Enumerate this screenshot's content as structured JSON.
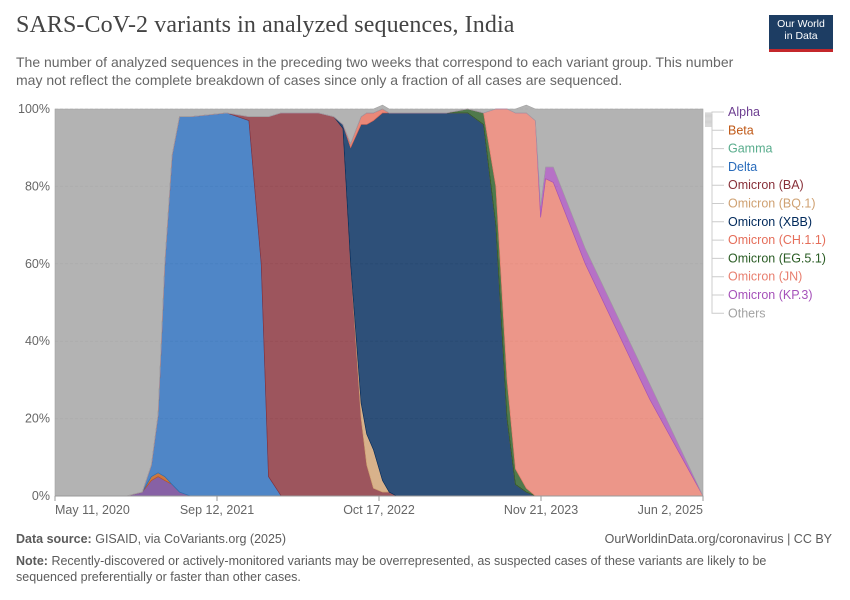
{
  "header": {
    "title": "SARS-CoV-2 variants in analyzed sequences, India",
    "subtitle": "The number of analyzed sequences in the preceding two weeks that correspond to each variant group. This number may not reflect the complete breakdown of cases since only a fraction of all cases are sequenced.",
    "logo_line1": "Our World",
    "logo_line2": "in Data"
  },
  "footer": {
    "source_label": "Data source:",
    "source_text": "GISAID, via CoVariants.org (2025)",
    "url_text": "OurWorldinData.org/coronavirus | CC BY",
    "note_label": "Note:",
    "note_text": "Recently-discovered or actively-monitored variants may be overrepresented, as suspected cases of these variants are likely to be sequenced preferentially or faster than other cases."
  },
  "chart_data": {
    "type": "area",
    "stacked": true,
    "y_unit": "percent",
    "ylim": [
      0,
      100
    ],
    "y_ticks": [
      "0%",
      "20%",
      "40%",
      "60%",
      "80%",
      "100%"
    ],
    "x_ticks": [
      "May 11, 2020",
      "Sep 12, 2021",
      "Oct 17, 2022",
      "Nov 21, 2023",
      "Jun 2, 2025"
    ],
    "grid": "horizontal dashed",
    "legend_position": "right",
    "x": [
      "2020-05-11",
      "2020-08-01",
      "2020-10-15",
      "2020-12-01",
      "2021-01-15",
      "2021-02-10",
      "2021-03-01",
      "2021-03-20",
      "2021-04-10",
      "2021-05-01",
      "2021-06-01",
      "2021-09-12",
      "2021-11-15",
      "2021-12-20",
      "2022-01-10",
      "2022-02-15",
      "2022-06-01",
      "2022-07-15",
      "2022-08-10",
      "2022-09-01",
      "2022-10-01",
      "2022-10-17",
      "2022-11-05",
      "2022-12-01",
      "2022-12-20",
      "2023-01-10",
      "2023-02-20",
      "2023-04-01",
      "2023-06-01",
      "2023-08-01",
      "2023-09-15",
      "2023-10-20",
      "2023-11-21",
      "2023-12-15",
      "2024-01-15",
      "2024-02-10",
      "2024-02-25",
      "2024-03-10",
      "2024-04-01",
      "2024-07-01",
      "2025-01-01",
      "2025-06-02"
    ],
    "series": [
      {
        "name": "Alpha",
        "color": "#6d3e91",
        "values": [
          0,
          0,
          0,
          0,
          1,
          4,
          5,
          4,
          3,
          1,
          0,
          0,
          0,
          0,
          0,
          0,
          0,
          0,
          0,
          0,
          0,
          0,
          0,
          0,
          0,
          0,
          0,
          0,
          0,
          0,
          0,
          0,
          0,
          0,
          0,
          0,
          0,
          0,
          0,
          0,
          0,
          0
        ]
      },
      {
        "name": "Beta",
        "color": "#c05917",
        "values": [
          0,
          0,
          0,
          0,
          0,
          1,
          1,
          1,
          0,
          0,
          0,
          0,
          0,
          0,
          0,
          0,
          0,
          0,
          0,
          0,
          0,
          0,
          0,
          0,
          0,
          0,
          0,
          0,
          0,
          0,
          0,
          0,
          0,
          0,
          0,
          0,
          0,
          0,
          0,
          0,
          0,
          0
        ]
      },
      {
        "name": "Gamma",
        "color": "#58ac8c",
        "values": [
          0,
          0,
          0,
          0,
          0,
          0,
          0,
          0,
          0,
          0,
          0,
          0,
          0,
          0,
          0,
          0,
          0,
          0,
          0,
          0,
          0,
          0,
          0,
          0,
          0,
          0,
          0,
          0,
          0,
          0,
          0,
          0,
          0,
          0,
          0,
          0,
          0,
          0,
          0,
          0,
          0,
          0
        ]
      },
      {
        "name": "Delta",
        "color": "#286bbb",
        "values": [
          0,
          0,
          0,
          0,
          0,
          3,
          15,
          55,
          85,
          97,
          98,
          99,
          97,
          60,
          5,
          0,
          0,
          0,
          0,
          0,
          0,
          0,
          0,
          0,
          0,
          0,
          0,
          0,
          0,
          0,
          0,
          0,
          0,
          0,
          0,
          0,
          0,
          0,
          0,
          0,
          0,
          0
        ]
      },
      {
        "name": "Omicron (BA)",
        "color": "#883039",
        "values": [
          0,
          0,
          0,
          0,
          0,
          0,
          0,
          0,
          0,
          0,
          0,
          0,
          1,
          38,
          93,
          99,
          99,
          98,
          95,
          60,
          20,
          8,
          2,
          1,
          1,
          0,
          0,
          0,
          0,
          0,
          0,
          0,
          0,
          0,
          0,
          0,
          0,
          0,
          0,
          0,
          0,
          0
        ]
      },
      {
        "name": "Omicron (BQ.1)",
        "color": "#cfa172",
        "values": [
          0,
          0,
          0,
          0,
          0,
          0,
          0,
          0,
          0,
          0,
          0,
          0,
          0,
          0,
          0,
          0,
          0,
          0,
          0,
          0,
          4,
          8,
          10,
          3,
          0,
          0,
          0,
          0,
          0,
          0,
          0,
          0,
          0,
          0,
          0,
          0,
          0,
          0,
          0,
          0,
          0,
          0
        ]
      },
      {
        "name": "Omicron (XBB)",
        "color": "#00295b",
        "values": [
          0,
          0,
          0,
          0,
          0,
          0,
          0,
          0,
          0,
          0,
          0,
          0,
          0,
          0,
          0,
          0,
          0,
          0,
          1,
          30,
          72,
          80,
          85,
          95,
          98,
          99,
          99,
          99,
          99,
          99,
          96,
          70,
          20,
          3,
          1,
          0,
          0,
          0,
          0,
          0,
          0,
          0
        ]
      },
      {
        "name": "Omicron (CH.1.1)",
        "color": "#e56e5a",
        "values": [
          0,
          0,
          0,
          0,
          0,
          0,
          0,
          0,
          0,
          0,
          0,
          0,
          0,
          0,
          0,
          0,
          0,
          0,
          0,
          1,
          2,
          3,
          2,
          1,
          0,
          0,
          0,
          0,
          0,
          0,
          0,
          0,
          0,
          0,
          0,
          0,
          0,
          0,
          0,
          0,
          0,
          0
        ]
      },
      {
        "name": "Omicron (EG.5.1)",
        "color": "#2a5c24",
        "values": [
          0,
          0,
          0,
          0,
          0,
          0,
          0,
          0,
          0,
          0,
          0,
          0,
          0,
          0,
          0,
          0,
          0,
          0,
          0,
          0,
          0,
          0,
          0,
          0,
          0,
          0,
          0,
          0,
          0,
          1,
          3,
          10,
          10,
          4,
          1,
          0,
          0,
          0,
          0,
          0,
          0,
          0
        ]
      },
      {
        "name": "Omicron (JN)",
        "color": "#e87f6f",
        "values": [
          0,
          0,
          0,
          0,
          0,
          0,
          0,
          0,
          0,
          0,
          0,
          0,
          0,
          0,
          0,
          0,
          0,
          0,
          0,
          0,
          0,
          0,
          0,
          0,
          0,
          0,
          0,
          0,
          0,
          0,
          0,
          20,
          70,
          92,
          97,
          97,
          72,
          82,
          81,
          60,
          25,
          0
        ]
      },
      {
        "name": "Omicron (KP.3)",
        "color": "#a652ba",
        "values": [
          0,
          0,
          0,
          0,
          0,
          0,
          0,
          0,
          0,
          0,
          0,
          0,
          0,
          0,
          0,
          0,
          0,
          0,
          0,
          0,
          0,
          0,
          0,
          0,
          0,
          0,
          0,
          0,
          0,
          0,
          0,
          0,
          0,
          0,
          0,
          0,
          3,
          3,
          4,
          4,
          4,
          0
        ]
      },
      {
        "name": "Others",
        "color": "#a2a2a2",
        "values": [
          100,
          100,
          100,
          100,
          99,
          92,
          79,
          40,
          12,
          2,
          2,
          1,
          2,
          2,
          2,
          1,
          1,
          2,
          4,
          9,
          2,
          1,
          1,
          1,
          1,
          1,
          1,
          1,
          1,
          0,
          1,
          0,
          0,
          1,
          2,
          3,
          25,
          15,
          15,
          36,
          71,
          100
        ]
      }
    ]
  }
}
